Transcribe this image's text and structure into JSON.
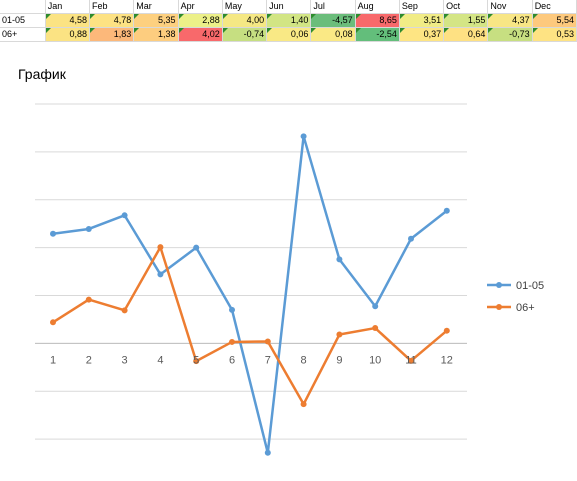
{
  "table": {
    "headers": [
      "",
      "Jan",
      "Feb",
      "Mar",
      "Apr",
      "May",
      "Jun",
      "Jul",
      "Aug",
      "Sep",
      "Oct",
      "Nov",
      "Dec"
    ],
    "rows": [
      {
        "label": "01-05",
        "cells": [
          {
            "text": "4,58",
            "color": "#fbe383"
          },
          {
            "text": "4,78",
            "color": "#fde283"
          },
          {
            "text": "5,35",
            "color": "#fdd07f"
          },
          {
            "text": "2,88",
            "color": "#ecf088"
          },
          {
            "text": "4,00",
            "color": "#f5e884"
          },
          {
            "text": "1,40",
            "color": "#d2e584"
          },
          {
            "text": "-4,57",
            "color": "#6bbd7b"
          },
          {
            "text": "8,65",
            "color": "#f8696b"
          },
          {
            "text": "3,51",
            "color": "#f1ec86"
          },
          {
            "text": "1,55",
            "color": "#d4e585"
          },
          {
            "text": "4,37",
            "color": "#f8e685"
          },
          {
            "text": "5,54",
            "color": "#fdc97d"
          }
        ]
      },
      {
        "label": "06+",
        "cells": [
          {
            "text": "0,88",
            "color": "#fbe383"
          },
          {
            "text": "1,83",
            "color": "#fcb87a"
          },
          {
            "text": "1,38",
            "color": "#fdcd7f"
          },
          {
            "text": "4,02",
            "color": "#f8696b"
          },
          {
            "text": "-0,74",
            "color": "#c6df81"
          },
          {
            "text": "0,06",
            "color": "#f9e985"
          },
          {
            "text": "0,08",
            "color": "#fae985"
          },
          {
            "text": "-2,54",
            "color": "#63be7b"
          },
          {
            "text": "0,37",
            "color": "#fee583"
          },
          {
            "text": "0,64",
            "color": "#fee183"
          },
          {
            "text": "-0,73",
            "color": "#c7df81"
          },
          {
            "text": "0,53",
            "color": "#fee383"
          }
        ]
      }
    ]
  },
  "chart_data": {
    "type": "line",
    "title": "График",
    "x": [
      1,
      2,
      3,
      4,
      5,
      6,
      7,
      8,
      9,
      10,
      11,
      12
    ],
    "ylim": [
      -6,
      10
    ],
    "series": [
      {
        "name": "01-05",
        "color": "#5b9bd5",
        "values": [
          4.58,
          4.78,
          5.35,
          2.88,
          4.0,
          1.4,
          -4.57,
          8.65,
          3.51,
          1.55,
          4.37,
          5.54
        ]
      },
      {
        "name": "06+",
        "color": "#ed7d31",
        "values": [
          0.88,
          1.83,
          1.38,
          4.02,
          -0.74,
          0.06,
          0.08,
          -2.54,
          0.37,
          0.64,
          -0.73,
          0.53
        ]
      }
    ],
    "grid": true,
    "legend": "right"
  }
}
